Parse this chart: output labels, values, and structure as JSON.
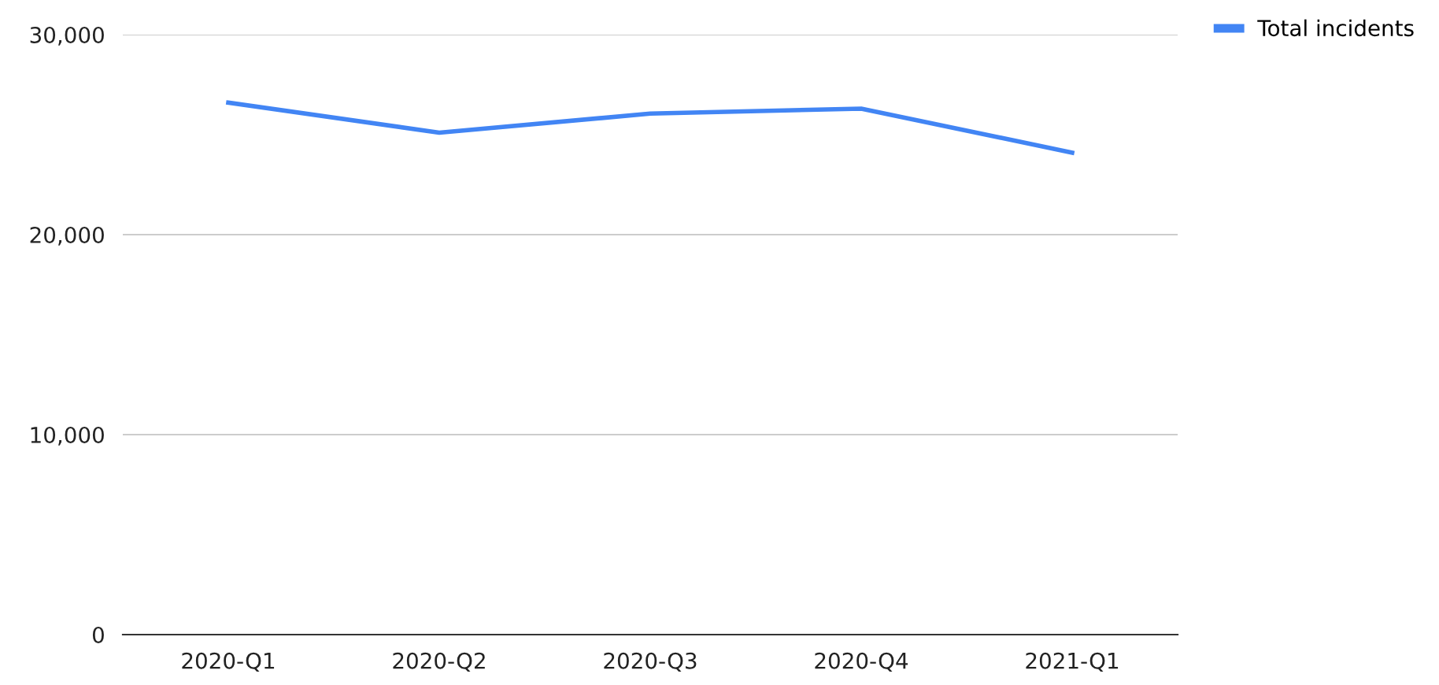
{
  "chart_data": {
    "type": "line",
    "categories": [
      "2020-Q1",
      "2020-Q2",
      "2020-Q3",
      "2020-Q4",
      "2021-Q1"
    ],
    "series": [
      {
        "name": "Total incidents",
        "color": "#4285f4",
        "values": [
          26600,
          25100,
          26050,
          26300,
          24100
        ]
      }
    ],
    "ylim": [
      0,
      30000
    ],
    "yticks": [
      {
        "value": 0,
        "label": "0"
      },
      {
        "value": 10000,
        "label": "10,000"
      },
      {
        "value": 20000,
        "label": "20,000"
      },
      {
        "value": 30000,
        "label": "30,000"
      }
    ],
    "grid": "y",
    "legend": "top right",
    "marker": "none",
    "line_style": "solid"
  }
}
